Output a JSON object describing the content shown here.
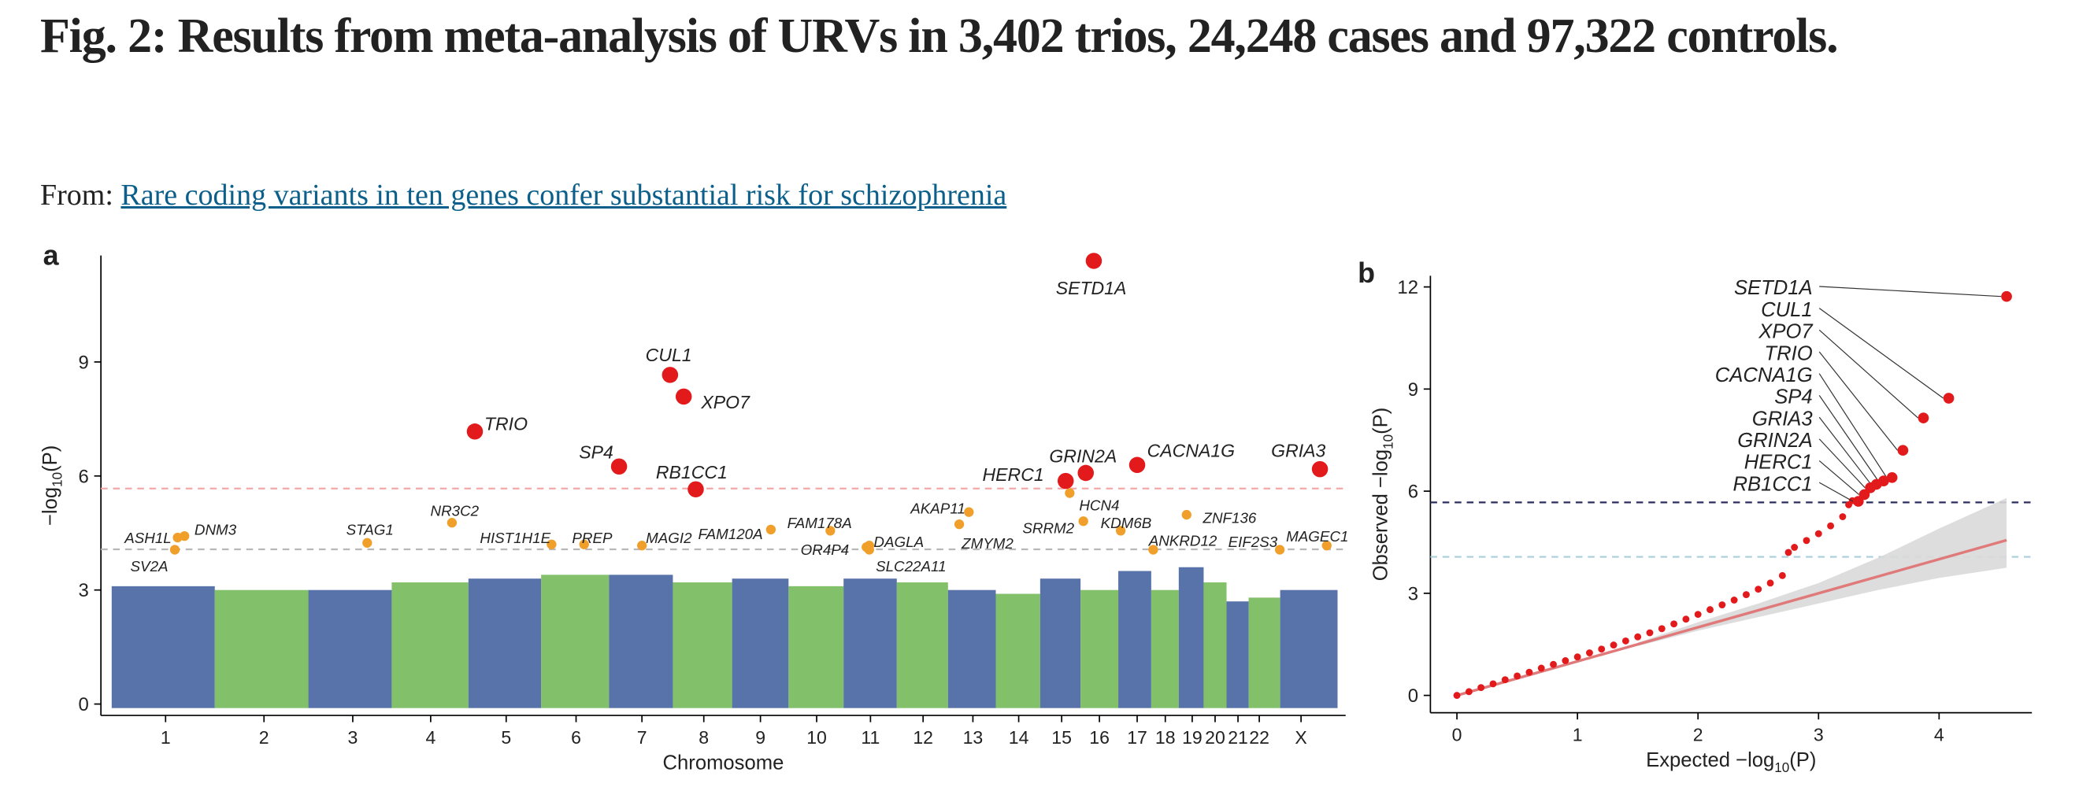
{
  "header": {
    "title": "Fig. 2: Results from meta-analysis of URVs in 3,402 trios, 24,248 cases and 97,322 controls.",
    "from_label": "From:",
    "source_link": "Rare coding variants in ten genes confer substantial risk for schizophrenia"
  },
  "chart_data": [
    {
      "type": "manhattan",
      "panel_label": "a",
      "x_label": "Chromosome",
      "y_label": [
        "−log",
        "10",
        "(P)"
      ],
      "xlim": [
        0,
        3099
      ],
      "xticks": [
        {
          "value": 161,
          "label": "1"
        },
        {
          "value": 406,
          "label": "2"
        },
        {
          "value": 627,
          "label": "3"
        },
        {
          "value": 821,
          "label": "4"
        },
        {
          "value": 1009,
          "label": "5"
        },
        {
          "value": 1183,
          "label": "6"
        },
        {
          "value": 1347,
          "label": "7"
        },
        {
          "value": 1501,
          "label": "8"
        },
        {
          "value": 1642,
          "label": "9"
        },
        {
          "value": 1782,
          "label": "10"
        },
        {
          "value": 1916,
          "label": "11"
        },
        {
          "value": 2047,
          "label": "12"
        },
        {
          "value": 2171,
          "label": "13"
        },
        {
          "value": 2285,
          "label": "14"
        },
        {
          "value": 2392,
          "label": "15"
        },
        {
          "value": 2486,
          "label": "16"
        },
        {
          "value": 2580,
          "label": "17"
        },
        {
          "value": 2650,
          "label": "18"
        },
        {
          "value": 2717,
          "label": "19"
        },
        {
          "value": 2774,
          "label": "20"
        },
        {
          "value": 2831,
          "label": "21"
        },
        {
          "value": 2884,
          "label": "22"
        },
        {
          "value": 2988,
          "label": "X"
        }
      ],
      "ylim": [
        -0.3,
        11.8
      ],
      "yticks": [
        0,
        3,
        6,
        9
      ],
      "thresholds": [
        {
          "value": 5.67,
          "color": "#f4a9a9"
        },
        {
          "value": 4.07,
          "color": "#b8b8b8"
        }
      ],
      "background": {
        "colors": [
          "#3b5a9a",
          "#6cb550"
        ],
        "values": [
          3.1,
          3.0,
          3.0,
          3.2,
          3.3,
          3.4,
          3.4,
          3.2,
          3.3,
          3.1,
          3.3,
          3.2,
          3.0,
          2.9,
          3.3,
          3.0,
          3.5,
          3.0,
          3.6,
          3.2,
          2.7,
          2.8,
          3.0
        ]
      },
      "series": [
        {
          "color": "#e31a1c",
          "labels": [
            "SETD1A",
            "CUL1",
            "XPO7",
            "TRIO",
            "SP4",
            "RB1CC1",
            "HERC1",
            "GRIN2A",
            "CACNA1G",
            "GRIA3"
          ],
          "x": [
            2472,
            1417,
            1451,
            931,
            1290,
            1481,
            2402,
            2452,
            2580,
            3035
          ],
          "values": [
            11.66,
            8.66,
            8.09,
            7.17,
            6.25,
            5.65,
            5.87,
            6.08,
            6.29,
            6.18
          ]
        },
        {
          "color": "#f0a02a",
          "labels": [
            "ASH1L",
            "DNM3",
            "SV2A",
            "STAG1",
            "NR3C2",
            "HIST1H1E",
            "PREP",
            "MAGI2",
            "FAM120A",
            "FAM178A",
            "OR4P4",
            "DAGLA",
            "SLC22A11",
            "AKAP11",
            "ZMYM2",
            "HCN4",
            "SRRM2",
            "KDM6B",
            "ANKRD12",
            "ZNF136",
            "EIF2S3",
            "MAGEC1"
          ],
          "x": [
            191,
            208,
            184,
            663,
            874,
            1122,
            1203,
            1347,
            1668,
            1816,
            1913,
            1906,
            1913,
            2161,
            2137,
            2412,
            2446,
            2539,
            2620,
            2703,
            2935,
            3052
          ],
          "values": [
            4.38,
            4.42,
            4.06,
            4.24,
            4.77,
            4.2,
            4.2,
            4.17,
            4.59,
            4.56,
            4.17,
            4.13,
            4.06,
            5.05,
            4.73,
            5.55,
            4.81,
            4.56,
            4.06,
            4.98,
            4.06,
            4.17
          ]
        }
      ]
    },
    {
      "type": "qq",
      "panel_label": "b",
      "x_label": [
        "Expected −log",
        "10",
        "(P)"
      ],
      "y_label": [
        "Observed −log",
        "10",
        "(P)"
      ],
      "xlim": [
        -0.22,
        4.77
      ],
      "xticks": [
        0,
        1,
        2,
        3,
        4
      ],
      "ylim": [
        -0.51,
        12.33
      ],
      "yticks": [
        0,
        3,
        6,
        9,
        12
      ],
      "thresholds": [
        {
          "value": 5.67,
          "color": "#2b2d5c"
        },
        {
          "value": 4.07,
          "color": "#a9cfd8"
        }
      ],
      "ci": {
        "color": "#d9d9d9",
        "x": [
          1.5,
          2,
          2.5,
          3,
          3.5,
          4,
          4.56
        ],
        "lower": [
          1.45,
          1.9,
          2.3,
          2.7,
          3.1,
          3.45,
          3.75
        ],
        "upper": [
          1.55,
          2.15,
          2.7,
          3.3,
          4.05,
          4.9,
          5.8
        ]
      },
      "expected": {
        "color": "#e07a7a",
        "x": [
          0,
          4.56
        ],
        "values": [
          0,
          4.56
        ]
      },
      "observed": {
        "color": "#e31a1c",
        "x": [
          0,
          0.1,
          0.2,
          0.3,
          0.4,
          0.5,
          0.6,
          0.7,
          0.8,
          0.9,
          1.0,
          1.1,
          1.2,
          1.3,
          1.4,
          1.5,
          1.6,
          1.7,
          1.8,
          1.9,
          2.0,
          2.1,
          2.2,
          2.3,
          2.4,
          2.5,
          2.6,
          2.7,
          2.75,
          2.8,
          2.9,
          3.0,
          3.1,
          3.2,
          3.25,
          3.28
        ],
        "values": [
          0,
          0.11,
          0.23,
          0.34,
          0.46,
          0.57,
          0.68,
          0.8,
          0.91,
          1.02,
          1.13,
          1.25,
          1.36,
          1.48,
          1.6,
          1.72,
          1.84,
          1.96,
          2.1,
          2.24,
          2.38,
          2.52,
          2.66,
          2.8,
          2.96,
          3.12,
          3.3,
          3.52,
          4.2,
          4.35,
          4.55,
          4.75,
          4.98,
          5.25,
          5.6,
          5.72
        ]
      },
      "top_genes": {
        "color": "#e31a1c",
        "labels": [
          "SETD1A",
          "CUL1",
          "XPO7",
          "TRIO",
          "CACNA1G",
          "SP4",
          "GRIA3",
          "GRIN2A",
          "HERC1",
          "RB1CC1"
        ],
        "x": [
          4.56,
          4.08,
          3.87,
          3.7,
          3.61,
          3.54,
          3.48,
          3.43,
          3.38,
          3.33
        ],
        "values": [
          11.72,
          8.73,
          8.15,
          7.2,
          6.4,
          6.3,
          6.2,
          6.1,
          5.9,
          5.7
        ]
      }
    }
  ]
}
